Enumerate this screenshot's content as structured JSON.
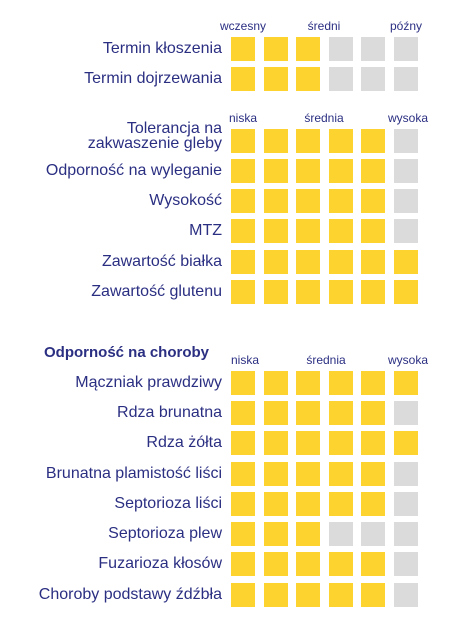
{
  "colors": {
    "filled": "#fdd42f",
    "empty": "#dbdbdb",
    "text": "#2b2f82"
  },
  "group1": {
    "scale": [
      "wczesny",
      "średni",
      "późny"
    ],
    "rows": [
      {
        "label": "Termin kłoszenia",
        "level": 3,
        "max": 6
      },
      {
        "label": "Termin dojrzewania",
        "level": 3,
        "max": 6
      }
    ]
  },
  "group2": {
    "scale": [
      "niska",
      "średnia",
      "wysoka"
    ],
    "rows": [
      {
        "label": "Tolerancja na zakwaszenie gleby",
        "level": 5,
        "max": 6
      },
      {
        "label": "Odporność na wyleganie",
        "level": 5,
        "max": 6
      },
      {
        "label": "Wysokość",
        "level": 5,
        "max": 6
      },
      {
        "label": "MTZ",
        "level": 5,
        "max": 6
      },
      {
        "label": "Zawartość białka",
        "level": 6,
        "max": 6
      },
      {
        "label": "Zawartość glutenu",
        "level": 6,
        "max": 6
      }
    ]
  },
  "group3": {
    "heading": "Odporność na choroby",
    "scale": [
      "niska",
      "średnia",
      "wysoka"
    ],
    "rows": [
      {
        "label": "Mączniak prawdziwy",
        "level": 6,
        "max": 6
      },
      {
        "label": "Rdza brunatna",
        "level": 5,
        "max": 6
      },
      {
        "label": "Rdza żółta",
        "level": 6,
        "max": 6
      },
      {
        "label": "Brunatna plamistość liści",
        "level": 5,
        "max": 6
      },
      {
        "label": "Septorioza liści",
        "level": 5,
        "max": 6
      },
      {
        "label": "Septorioza plew",
        "level": 3,
        "max": 6
      },
      {
        "label": "Fuzarioza kłosów",
        "level": 5,
        "max": 6
      },
      {
        "label": "Choroby podstawy źdźbła",
        "level": 5,
        "max": 6
      }
    ]
  }
}
